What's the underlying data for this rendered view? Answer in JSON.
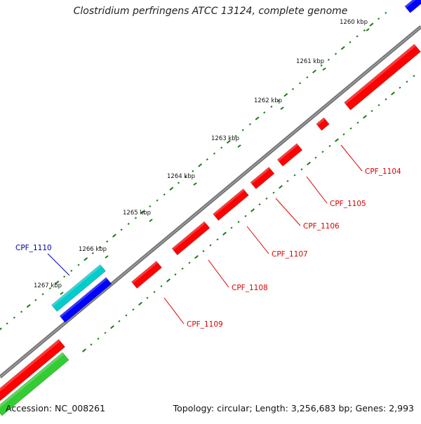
{
  "title": "Clostridium perfringens ATCC 13124, complete genome",
  "footer": {
    "accession": "Accession: NC_008261",
    "summary": "Topology: circular; Length: 3,256,683 bp; Genes: 2,993"
  },
  "ticks": [
    "1260 kbp",
    "1261 kbp",
    "1262 kbp",
    "1263 kbp",
    "1264 kbp",
    "1265 kbp",
    "1266 kbp",
    "1267 kbp"
  ],
  "genes": [
    {
      "id": "CPF_1104",
      "color": "#cc0000"
    },
    {
      "id": "CPF_1105",
      "color": "#cc0000"
    },
    {
      "id": "CPF_1106",
      "color": "#cc0000"
    },
    {
      "id": "CPF_1107",
      "color": "#cc0000"
    },
    {
      "id": "CPF_1108",
      "color": "#cc0000"
    },
    {
      "id": "CPF_1109",
      "color": "#cc0000"
    },
    {
      "id": "CPF_1110",
      "color": "#0000aa"
    }
  ],
  "colors": {
    "forward_cds": "#ff0000",
    "reverse_cds": "#ff0000",
    "rna": "#0000ff",
    "rna_light": "#00cccc",
    "other": "#33cc33",
    "backbone": "#888888",
    "gc_dots": "#1a7a1a"
  }
}
